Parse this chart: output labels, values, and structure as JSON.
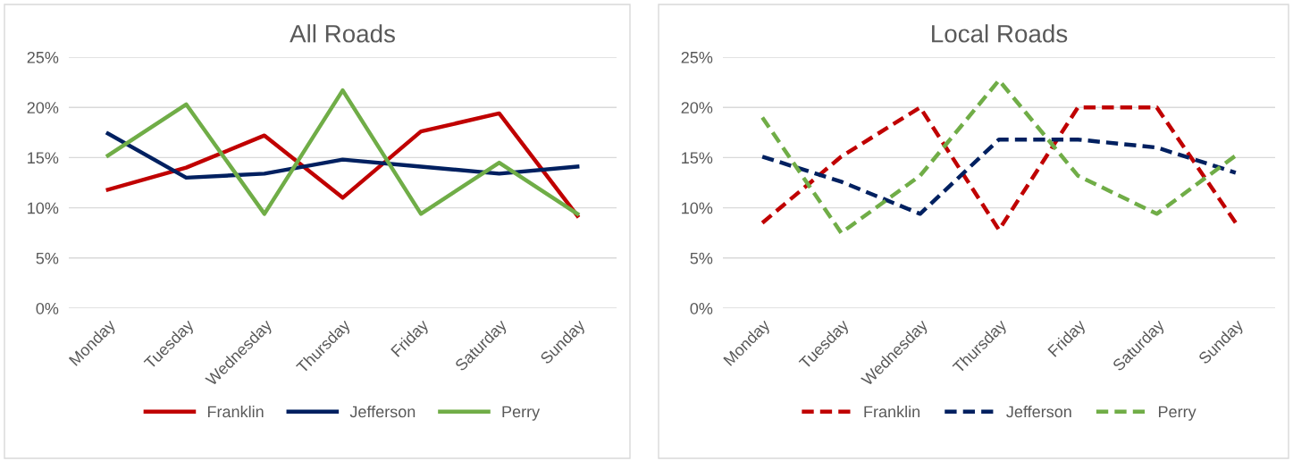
{
  "chart_data": [
    {
      "type": "line",
      "title": "All Roads",
      "categories": [
        "Monday",
        "Tuesday",
        "Wednesday",
        "Thursday",
        "Friday",
        "Saturday",
        "Sunday"
      ],
      "series": [
        {
          "name": "Franklin",
          "color": "#c00000",
          "values": [
            11.8,
            14.0,
            17.2,
            11.0,
            17.6,
            19.4,
            9.2
          ]
        },
        {
          "name": "Jefferson",
          "color": "#002060",
          "values": [
            17.4,
            13.0,
            13.4,
            14.8,
            14.1,
            13.4,
            14.1
          ]
        },
        {
          "name": "Perry",
          "color": "#70ad47",
          "values": [
            15.2,
            20.3,
            9.4,
            21.7,
            9.4,
            14.5,
            9.4
          ]
        }
      ],
      "ylim": [
        0,
        25
      ],
      "yticks": [
        {
          "value": 0,
          "label": "0%"
        },
        {
          "value": 5,
          "label": "5%"
        },
        {
          "value": 10,
          "label": "10%"
        },
        {
          "value": 15,
          "label": "15%"
        },
        {
          "value": 20,
          "label": "20%"
        },
        {
          "value": 25,
          "label": "25%"
        }
      ],
      "grid": "y",
      "legend": "bottom",
      "line_style": "solid"
    },
    {
      "type": "line",
      "title": "Local Roads",
      "categories": [
        "Monday",
        "Tuesday",
        "Wednesday",
        "Thursday",
        "Friday",
        "Saturday",
        "Sunday"
      ],
      "series": [
        {
          "name": "Franklin",
          "color": "#c00000",
          "values": [
            8.5,
            15.1,
            20.0,
            7.8,
            20.0,
            20.0,
            8.5
          ]
        },
        {
          "name": "Jefferson",
          "color": "#002060",
          "values": [
            15.1,
            12.6,
            9.4,
            16.8,
            16.8,
            16.0,
            13.5
          ]
        },
        {
          "name": "Perry",
          "color": "#70ad47",
          "values": [
            19.0,
            7.5,
            13.2,
            22.7,
            13.2,
            9.4,
            15.2
          ]
        }
      ],
      "ylim": [
        0,
        25
      ],
      "yticks": [
        {
          "value": 0,
          "label": "0%"
        },
        {
          "value": 5,
          "label": "5%"
        },
        {
          "value": 10,
          "label": "10%"
        },
        {
          "value": 15,
          "label": "15%"
        },
        {
          "value": 20,
          "label": "20%"
        },
        {
          "value": 25,
          "label": "25%"
        }
      ],
      "grid": "y",
      "legend": "bottom",
      "line_style": "dashed"
    }
  ]
}
